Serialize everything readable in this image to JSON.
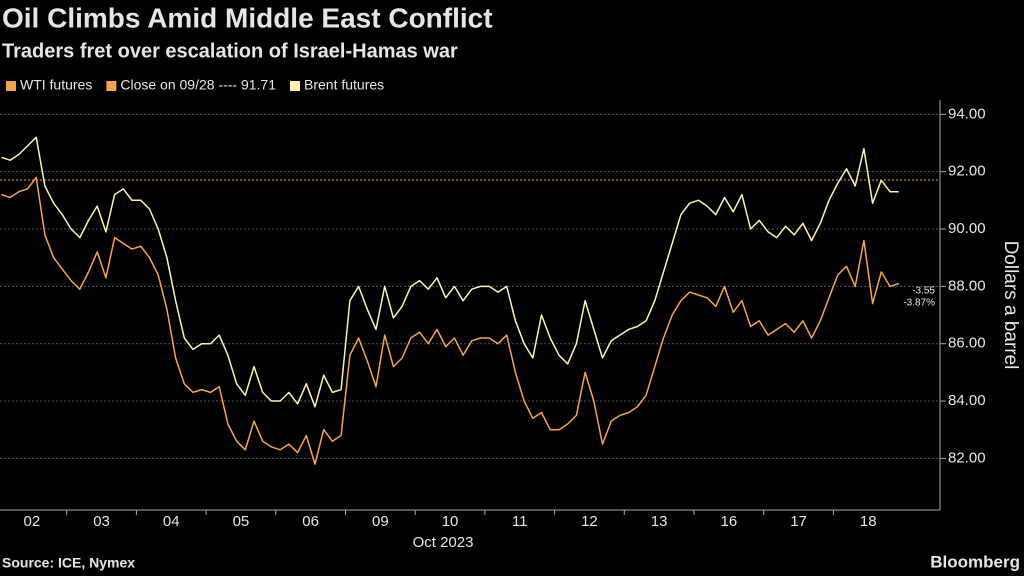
{
  "chart_data": {
    "type": "line",
    "title": "Oil Climbs Amid Middle East Conflict",
    "subtitle": "Traders fret over escalation of Israel-Hamas war",
    "y_axis_label": "Dollars a barrel",
    "x_axis_label": "Oct 2023",
    "source": "Source: ICE, Nymex",
    "brand": "Bloomberg",
    "categories": [
      "02",
      "03",
      "04",
      "05",
      "06",
      "09",
      "10",
      "11",
      "12",
      "13",
      "16",
      "17",
      "18"
    ],
    "series": [
      {
        "name": "WTI futures",
        "color": "#f5a449",
        "values": [
          [
            91.2,
            91.1,
            91.3,
            91.4,
            91.8,
            89.8,
            89.0,
            88.6
          ],
          [
            88.2,
            87.9,
            88.5,
            89.2,
            88.3,
            89.7,
            89.5,
            89.3
          ],
          [
            89.4,
            89.0,
            88.4,
            87.2,
            85.5,
            84.6,
            84.3,
            84.4
          ],
          [
            84.3,
            84.5,
            83.2,
            82.6,
            82.3,
            83.3,
            82.6,
            82.4
          ],
          [
            82.3,
            82.5,
            82.2,
            82.8,
            81.8,
            83.0,
            82.6,
            82.8
          ],
          [
            85.6,
            86.2,
            85.4,
            84.5,
            86.3,
            85.2,
            85.5,
            86.2
          ],
          [
            86.4,
            86.0,
            86.5,
            85.9,
            86.2,
            85.6,
            86.1,
            86.2
          ],
          [
            86.2,
            86.0,
            86.3,
            85.0,
            84.0,
            83.4,
            83.6,
            83.0
          ],
          [
            83.0,
            83.2,
            83.5,
            85.0,
            84.0,
            82.5,
            83.3,
            83.5
          ],
          [
            83.6,
            83.8,
            84.2,
            85.2,
            86.2,
            87.0,
            87.5,
            87.8
          ],
          [
            87.7,
            87.6,
            87.3,
            88.0,
            87.1,
            87.5,
            86.6,
            86.8
          ],
          [
            86.3,
            86.5,
            86.7,
            86.4,
            86.8,
            86.2,
            86.8,
            87.6
          ],
          [
            88.4,
            88.7,
            88.0,
            89.6,
            87.4,
            88.5,
            88.0,
            88.1
          ]
        ]
      },
      {
        "name": "Brent futures",
        "color": "#fdf4a8",
        "values": [
          [
            92.5,
            92.4,
            92.6,
            92.9,
            93.2,
            91.5,
            90.9,
            90.5
          ],
          [
            90.0,
            89.7,
            90.3,
            90.8,
            89.9,
            91.2,
            91.4,
            91.0
          ],
          [
            91.0,
            90.7,
            90.0,
            89.0,
            87.5,
            86.2,
            85.8,
            86.0
          ],
          [
            86.0,
            86.3,
            85.6,
            84.6,
            84.2,
            85.2,
            84.3,
            84.0
          ],
          [
            84.0,
            84.3,
            83.9,
            84.6,
            83.8,
            84.9,
            84.3,
            84.4
          ],
          [
            87.5,
            88.0,
            87.2,
            86.5,
            88.0,
            86.9,
            87.3,
            88.0
          ],
          [
            88.2,
            87.9,
            88.3,
            87.6,
            88.0,
            87.5,
            87.9,
            88.0
          ],
          [
            88.0,
            87.8,
            88.0,
            86.8,
            86.0,
            85.5,
            87.0,
            86.2
          ],
          [
            85.6,
            85.3,
            86.0,
            87.5,
            86.5,
            85.5,
            86.1,
            86.3
          ],
          [
            86.5,
            86.6,
            86.8,
            87.5,
            88.5,
            89.5,
            90.5,
            90.9
          ],
          [
            91.0,
            90.8,
            90.5,
            91.1,
            90.6,
            91.2,
            90.0,
            90.3
          ],
          [
            89.9,
            89.7,
            90.1,
            89.8,
            90.2,
            89.6,
            90.2,
            91.0
          ],
          [
            91.6,
            92.1,
            91.5,
            92.8,
            90.9,
            91.7,
            91.3,
            91.3
          ]
        ]
      }
    ],
    "reference_line": {
      "legend": "Close on 09/28 ---- 91.71",
      "value": 91.71,
      "color": "#f5a449"
    },
    "annotations": [
      "-3.55",
      "-3.87%"
    ],
    "ylim": [
      80.2,
      94.5
    ],
    "yticks": [
      {
        "value": 82,
        "label": "82.00"
      },
      {
        "value": 84,
        "label": "84.00"
      },
      {
        "value": 86,
        "label": "86.00"
      },
      {
        "value": 88,
        "label": "88.00"
      },
      {
        "value": 90,
        "label": "90.00"
      },
      {
        "value": 92,
        "label": "92.00"
      },
      {
        "value": 94,
        "label": "94.00"
      }
    ],
    "grid": true
  }
}
